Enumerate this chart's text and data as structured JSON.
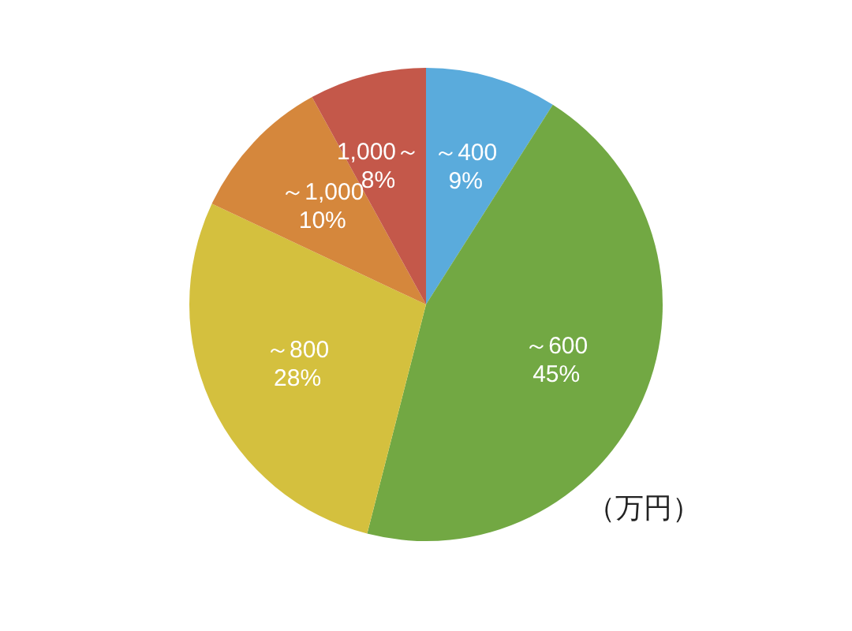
{
  "chart_data": {
    "type": "pie",
    "categories": [
      "～400",
      "～600",
      "～800",
      "～1,000",
      "1,000～"
    ],
    "values": [
      9,
      45,
      28,
      10,
      8
    ],
    "value_labels": [
      "9%",
      "45%",
      "28%",
      "10%",
      "8%"
    ],
    "colors": [
      "#5aabdc",
      "#72a843",
      "#d4c03e",
      "#d5873c",
      "#c4584a"
    ],
    "legend": false,
    "annotations": [
      "（万円）"
    ]
  }
}
